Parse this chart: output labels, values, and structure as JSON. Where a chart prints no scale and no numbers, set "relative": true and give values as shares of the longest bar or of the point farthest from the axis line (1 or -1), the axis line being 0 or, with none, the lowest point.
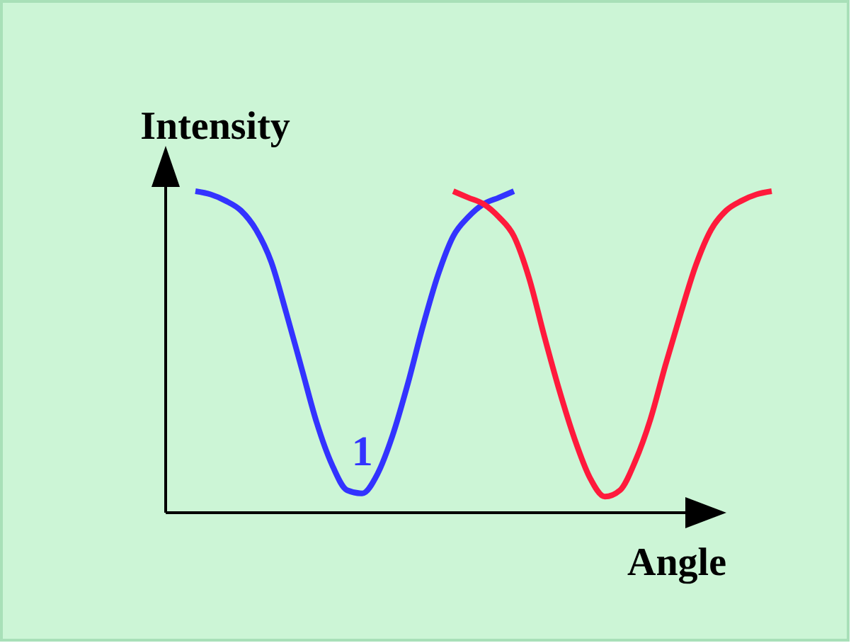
{
  "chart_data": {
    "type": "line",
    "relative": true,
    "xlabel": "Angle",
    "ylabel": "Intensity",
    "categories": [
      null,
      null,
      null,
      null,
      null,
      null,
      null,
      null,
      null,
      null,
      null,
      null,
      null,
      null,
      null,
      null,
      null,
      null,
      null,
      null,
      null,
      null,
      null,
      null,
      null,
      null,
      null,
      null,
      null,
      null,
      null,
      null,
      null,
      null,
      null,
      null,
      null,
      null,
      null
    ],
    "series": [
      {
        "name": "1",
        "color": "#3333ff",
        "values": [
          1,
          0.99,
          0.97,
          0.94,
          0.88,
          0.78,
          0.62,
          0.45,
          0.28,
          0.15,
          0.07,
          0.06,
          0.12,
          0.24,
          0.4,
          0.58,
          0.74,
          0.86,
          0.92,
          0.96,
          0.98,
          1,
          null,
          null,
          null,
          null,
          null,
          null,
          null,
          null,
          null,
          null,
          null,
          null,
          null,
          null,
          null,
          null,
          null
        ]
      },
      {
        "color": "#ff1a3c",
        "values": [
          null,
          null,
          null,
          null,
          null,
          null,
          null,
          null,
          null,
          null,
          null,
          null,
          null,
          null,
          null,
          null,
          null,
          1,
          0.98,
          0.96,
          0.92,
          0.86,
          0.73,
          0.55,
          0.38,
          0.23,
          0.11,
          0.05,
          0.07,
          0.16,
          0.29,
          0.46,
          0.62,
          0.77,
          0.88,
          0.94,
          0.97,
          0.99,
          1
        ]
      }
    ]
  }
}
